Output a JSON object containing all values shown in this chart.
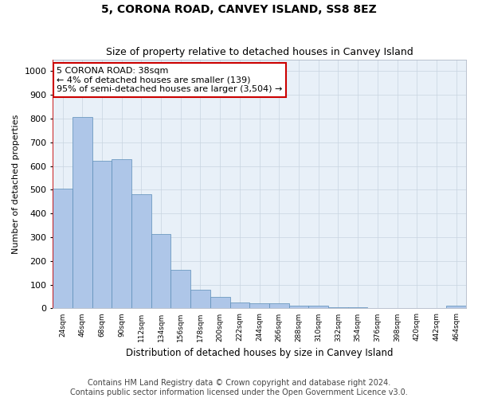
{
  "title": "5, CORONA ROAD, CANVEY ISLAND, SS8 8EZ",
  "subtitle": "Size of property relative to detached houses in Canvey Island",
  "xlabel": "Distribution of detached houses by size in Canvey Island",
  "ylabel": "Number of detached properties",
  "categories": [
    "24sqm",
    "46sqm",
    "68sqm",
    "90sqm",
    "112sqm",
    "134sqm",
    "156sqm",
    "178sqm",
    "200sqm",
    "222sqm",
    "244sqm",
    "266sqm",
    "288sqm",
    "310sqm",
    "332sqm",
    "354sqm",
    "376sqm",
    "398sqm",
    "420sqm",
    "442sqm",
    "464sqm"
  ],
  "values": [
    505,
    808,
    622,
    630,
    480,
    312,
    162,
    80,
    48,
    25,
    22,
    22,
    12,
    10,
    5,
    4,
    3,
    3,
    2,
    2,
    12
  ],
  "bar_color": "#aec6e8",
  "bar_edge_color": "#5b8db8",
  "highlight_line_color": "#cc0000",
  "annotation_text": "5 CORONA ROAD: 38sqm\n← 4% of detached houses are smaller (139)\n95% of semi-detached houses are larger (3,504) →",
  "annotation_box_color": "#ffffff",
  "annotation_border_color": "#cc0000",
  "ylim": [
    0,
    1050
  ],
  "yticks": [
    0,
    100,
    200,
    300,
    400,
    500,
    600,
    700,
    800,
    900,
    1000
  ],
  "grid_color": "#c8d4e0",
  "plot_bg_color": "#e8f0f8",
  "footer": "Contains HM Land Registry data © Crown copyright and database right 2024.\nContains public sector information licensed under the Open Government Licence v3.0.",
  "title_fontsize": 10,
  "subtitle_fontsize": 9,
  "footer_fontsize": 7
}
